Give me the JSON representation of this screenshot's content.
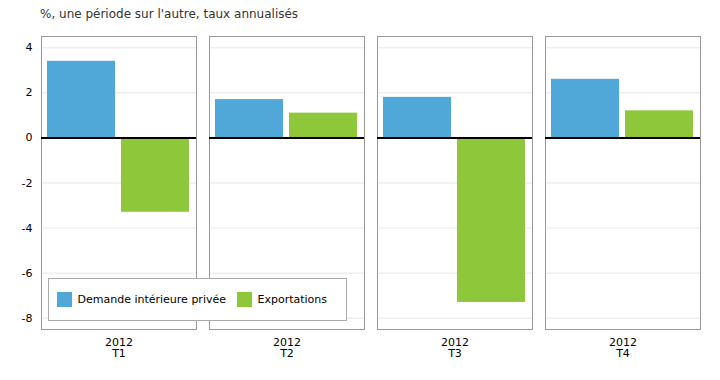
{
  "chart_data": {
    "type": "bar",
    "title": "%, une période sur l'autre, taux annualisés",
    "categories": [
      "2012\nT1",
      "2012\nT2",
      "2012\nT3",
      "2012\nT4"
    ],
    "series": [
      {
        "name": "Demande intérieure privée",
        "color": "#4fa8d8",
        "values": [
          3.4,
          1.7,
          1.8,
          2.6
        ]
      },
      {
        "name": "Exportations",
        "color": "#8ec83a",
        "values": [
          -3.3,
          1.1,
          -7.3,
          1.2
        ]
      }
    ],
    "ylim": [
      -8.5,
      4.5
    ],
    "yticks": [
      -8,
      -6,
      -4,
      -2,
      0,
      2,
      4
    ],
    "grid": true,
    "legend": "lower left"
  }
}
